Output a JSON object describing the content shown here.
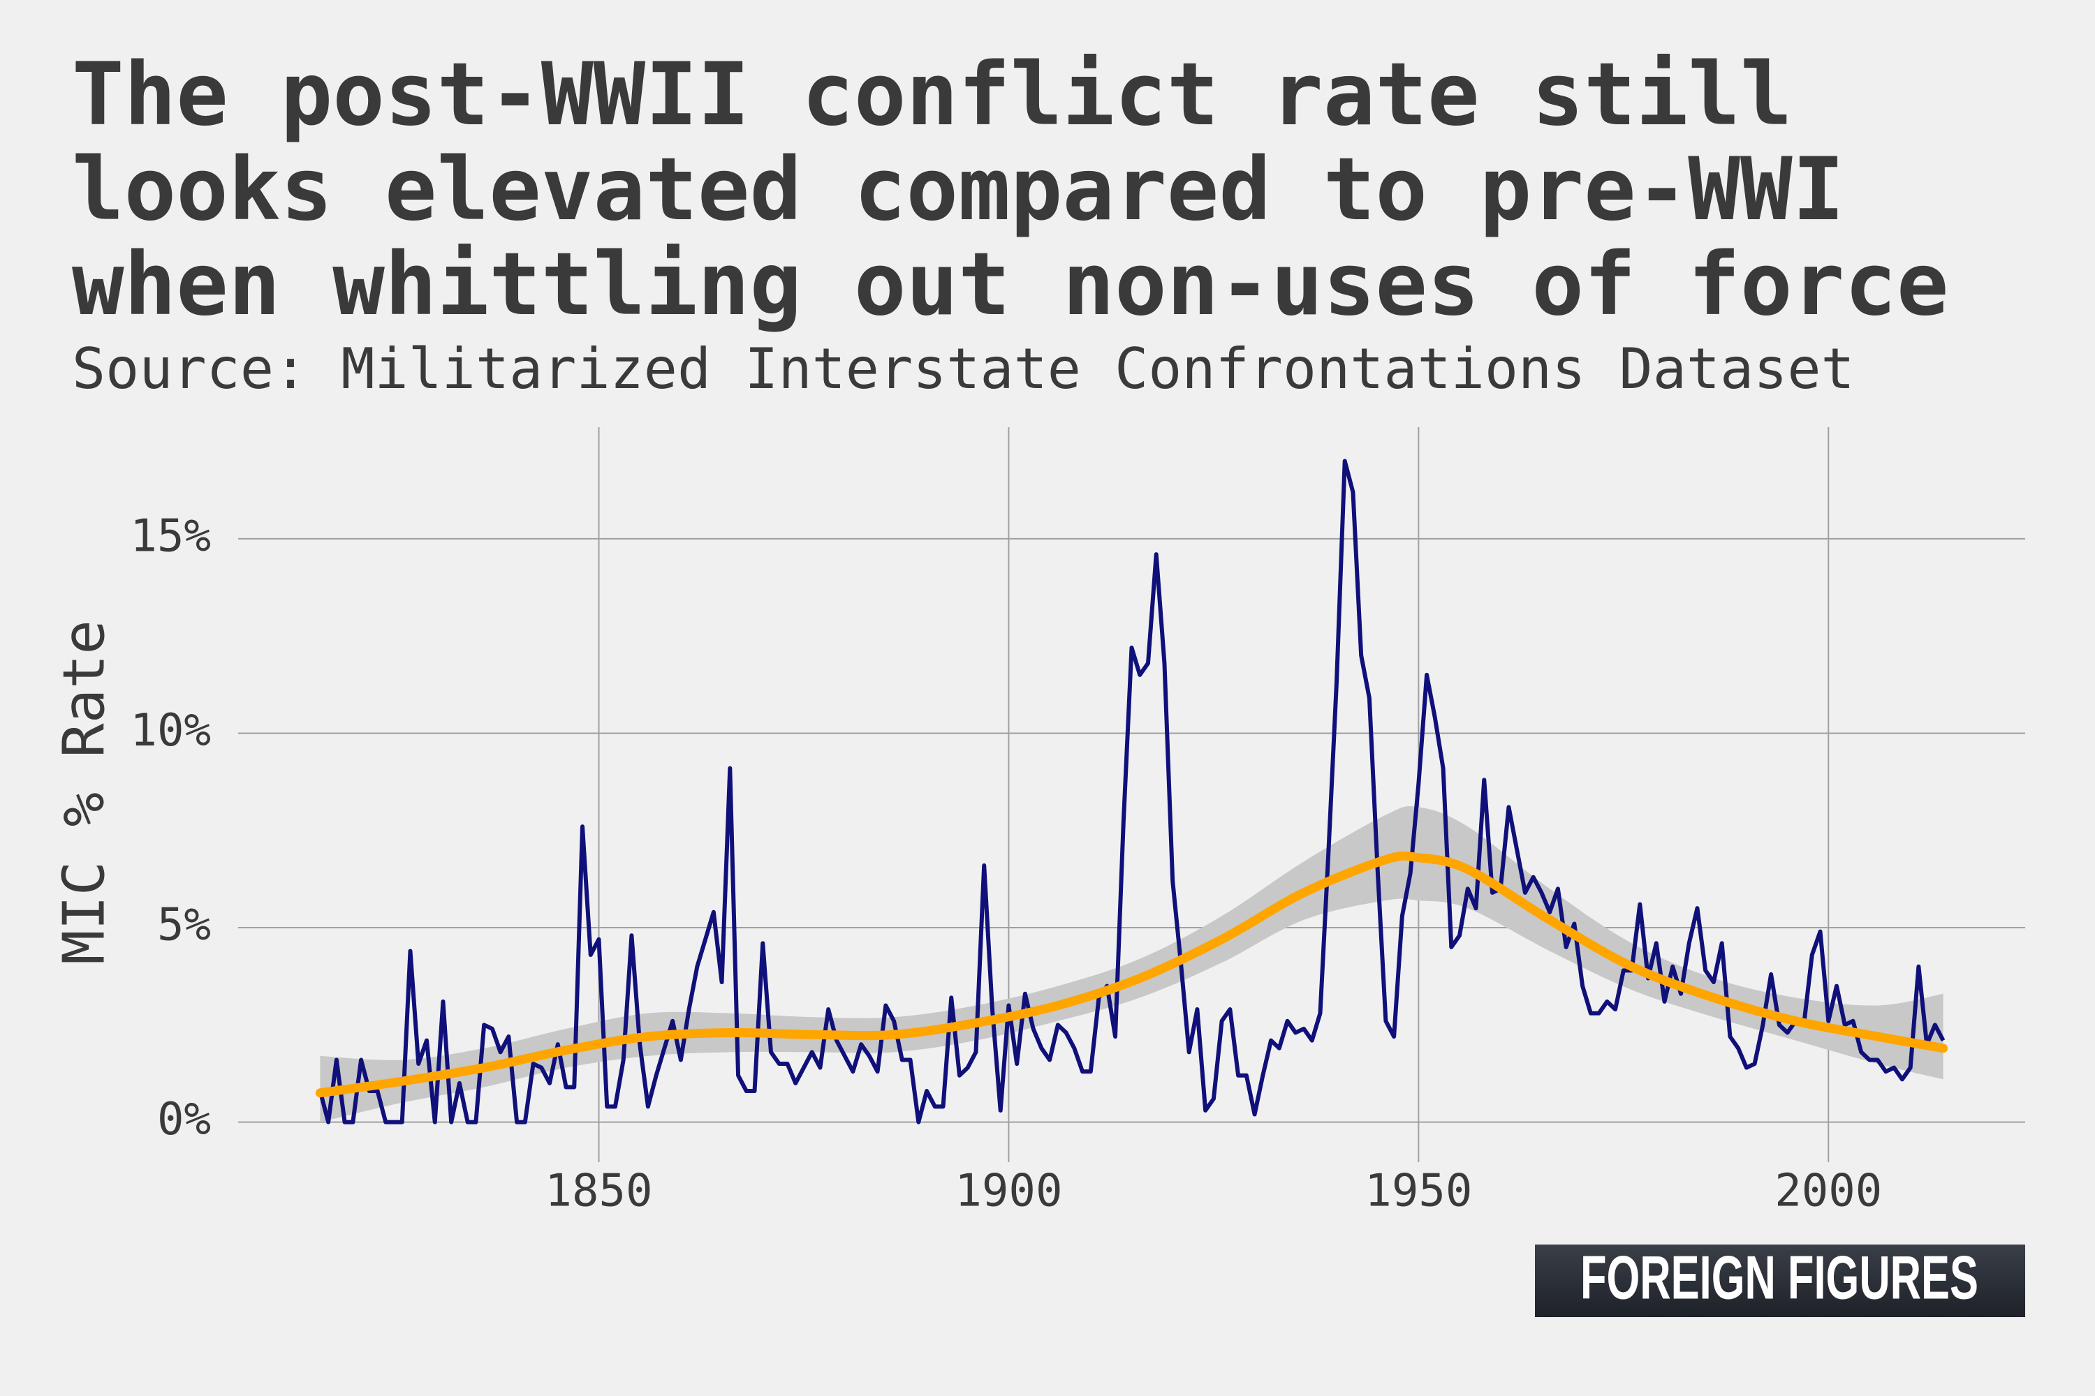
{
  "chart_data": {
    "type": "line",
    "title": "The post-WWII conflict rate still looks elevated compared to pre-WWI when whittling out non-uses of force",
    "subtitle": "Source: Militarized Interstate Confrontations Dataset",
    "y_label": "MIC % Rate",
    "branding": "FOREIGN FIGURES",
    "xlim": [
      1806,
      2024
    ],
    "ylim": [
      -1.03,
      17.87
    ],
    "xticks": [
      1850,
      1900,
      1950,
      2000
    ],
    "yticks": [
      {
        "value": 0,
        "label": "0%"
      },
      {
        "value": 5,
        "label": "5%"
      },
      {
        "value": 10,
        "label": "10%"
      },
      {
        "value": 15,
        "label": "15%"
      }
    ],
    "grid": true,
    "x": [
      1816,
      1817,
      1818,
      1819,
      1820,
      1821,
      1822,
      1823,
      1824,
      1825,
      1826,
      1827,
      1828,
      1829,
      1830,
      1831,
      1832,
      1833,
      1834,
      1835,
      1836,
      1837,
      1838,
      1839,
      1840,
      1841,
      1842,
      1843,
      1844,
      1845,
      1846,
      1847,
      1848,
      1849,
      1850,
      1851,
      1852,
      1853,
      1854,
      1855,
      1856,
      1857,
      1858,
      1859,
      1860,
      1861,
      1862,
      1863,
      1864,
      1865,
      1866,
      1867,
      1868,
      1869,
      1870,
      1871,
      1872,
      1873,
      1874,
      1875,
      1876,
      1877,
      1878,
      1879,
      1880,
      1881,
      1882,
      1883,
      1884,
      1885,
      1886,
      1887,
      1888,
      1889,
      1890,
      1891,
      1892,
      1893,
      1894,
      1895,
      1896,
      1897,
      1898,
      1899,
      1900,
      1901,
      1902,
      1903,
      1904,
      1905,
      1906,
      1907,
      1908,
      1909,
      1910,
      1911,
      1912,
      1913,
      1914,
      1915,
      1916,
      1917,
      1918,
      1919,
      1920,
      1921,
      1922,
      1923,
      1924,
      1925,
      1926,
      1927,
      1928,
      1929,
      1930,
      1931,
      1932,
      1933,
      1934,
      1935,
      1936,
      1937,
      1938,
      1939,
      1940,
      1941,
      1942,
      1943,
      1944,
      1945,
      1946,
      1947,
      1948,
      1949,
      1950,
      1951,
      1952,
      1953,
      1954,
      1955,
      1956,
      1957,
      1958,
      1959,
      1960,
      1961,
      1962,
      1963,
      1964,
      1965,
      1966,
      1967,
      1968,
      1969,
      1970,
      1971,
      1972,
      1973,
      1974,
      1975,
      1976,
      1977,
      1978,
      1979,
      1980,
      1981,
      1982,
      1983,
      1984,
      1985,
      1986,
      1987,
      1988,
      1989,
      1990,
      1991,
      1992,
      1993,
      1994,
      1995,
      1996,
      1997,
      1998,
      1999,
      2000,
      2001,
      2002,
      2003,
      2004,
      2005,
      2006,
      2007,
      2008,
      2009,
      2010,
      2011,
      2012,
      2013,
      2014
    ],
    "series": [
      {
        "color": "#10107a",
        "values": [
          0.8,
          0,
          1.6,
          0,
          0,
          1.6,
          0.8,
          0.8,
          0,
          0,
          0,
          4.4,
          1.5,
          2.1,
          0,
          3.1,
          0,
          1.0,
          0,
          0,
          2.5,
          2.4,
          1.8,
          2.2,
          0,
          0,
          1.5,
          1.4,
          1.0,
          2.0,
          0.9,
          0.9,
          7.6,
          4.3,
          4.7,
          0.4,
          0.4,
          1.6,
          4.8,
          2.0,
          0.4,
          1.2,
          1.9,
          2.6,
          1.6,
          2.9,
          4.0,
          4.7,
          5.4,
          3.6,
          9.1,
          1.2,
          0.8,
          0.8,
          4.6,
          1.8,
          1.5,
          1.5,
          1.0,
          1.4,
          1.8,
          1.4,
          2.9,
          2.1,
          1.7,
          1.3,
          2.0,
          1.7,
          1.3,
          3.0,
          2.6,
          1.6,
          1.6,
          0,
          0.8,
          0.4,
          0.4,
          3.2,
          1.2,
          1.4,
          1.8,
          6.6,
          2.9,
          0.3,
          3.0,
          1.5,
          3.3,
          2.4,
          1.9,
          1.6,
          2.5,
          2.3,
          1.9,
          1.3,
          1.3,
          3.2,
          3.5,
          2.2,
          7.7,
          12.2,
          11.5,
          11.8,
          14.6,
          11.8,
          6.2,
          4.1,
          1.8,
          2.9,
          0.3,
          0.6,
          2.6,
          2.9,
          1.2,
          1.2,
          0.2,
          1.2,
          2.1,
          1.9,
          2.6,
          2.3,
          2.4,
          2.1,
          2.8,
          6.9,
          11.3,
          17.0,
          16.2,
          12.0,
          10.9,
          6.5,
          2.6,
          2.2,
          5.3,
          6.4,
          8.7,
          11.5,
          10.4,
          9.1,
          4.5,
          4.8,
          6.0,
          5.5,
          8.8,
          5.9,
          6.0,
          8.1,
          7.0,
          5.9,
          6.3,
          5.9,
          5.4,
          6.0,
          4.5,
          5.1,
          3.5,
          2.8,
          2.8,
          3.1,
          2.9,
          3.9,
          3.9,
          5.6,
          3.7,
          4.6,
          3.1,
          4.0,
          3.3,
          4.6,
          5.5,
          3.9,
          3.6,
          4.6,
          2.2,
          1.9,
          1.4,
          1.5,
          2.5,
          3.8,
          2.5,
          2.3,
          2.6,
          2.5,
          4.3,
          4.9,
          2.6,
          3.5,
          2.5,
          2.6,
          1.8,
          1.6,
          1.6,
          1.3,
          1.4,
          1.1,
          1.4,
          4.0,
          2.0,
          2.5,
          2.1
        ]
      }
    ],
    "trend": {
      "color": "#ffa500",
      "band_color": "#c8c8c8",
      "x": [
        1816,
        1826,
        1836,
        1846,
        1856,
        1866,
        1876,
        1886,
        1896,
        1906,
        1916,
        1926,
        1936,
        1946,
        1950,
        1956,
        1966,
        1976,
        1986,
        1996,
        2006,
        2014
      ],
      "values": [
        0.75,
        1.05,
        1.4,
        1.85,
        2.2,
        2.3,
        2.25,
        2.25,
        2.55,
        3.0,
        3.7,
        4.7,
        5.9,
        6.75,
        6.8,
        6.5,
        5.2,
        4.0,
        3.2,
        2.6,
        2.2,
        1.9
      ],
      "lower": [
        0.0,
        0.5,
        0.9,
        1.4,
        1.7,
        1.8,
        1.8,
        1.8,
        2.1,
        2.6,
        3.2,
        4.1,
        5.2,
        5.7,
        5.7,
        5.5,
        4.4,
        3.4,
        2.7,
        2.1,
        1.5,
        1.1
      ],
      "upper": [
        1.7,
        1.6,
        1.9,
        2.4,
        2.8,
        2.8,
        2.7,
        2.7,
        3.0,
        3.5,
        4.2,
        5.3,
        6.7,
        7.9,
        8.1,
        7.6,
        6.0,
        4.6,
        3.7,
        3.2,
        3.0,
        3.3
      ]
    }
  }
}
